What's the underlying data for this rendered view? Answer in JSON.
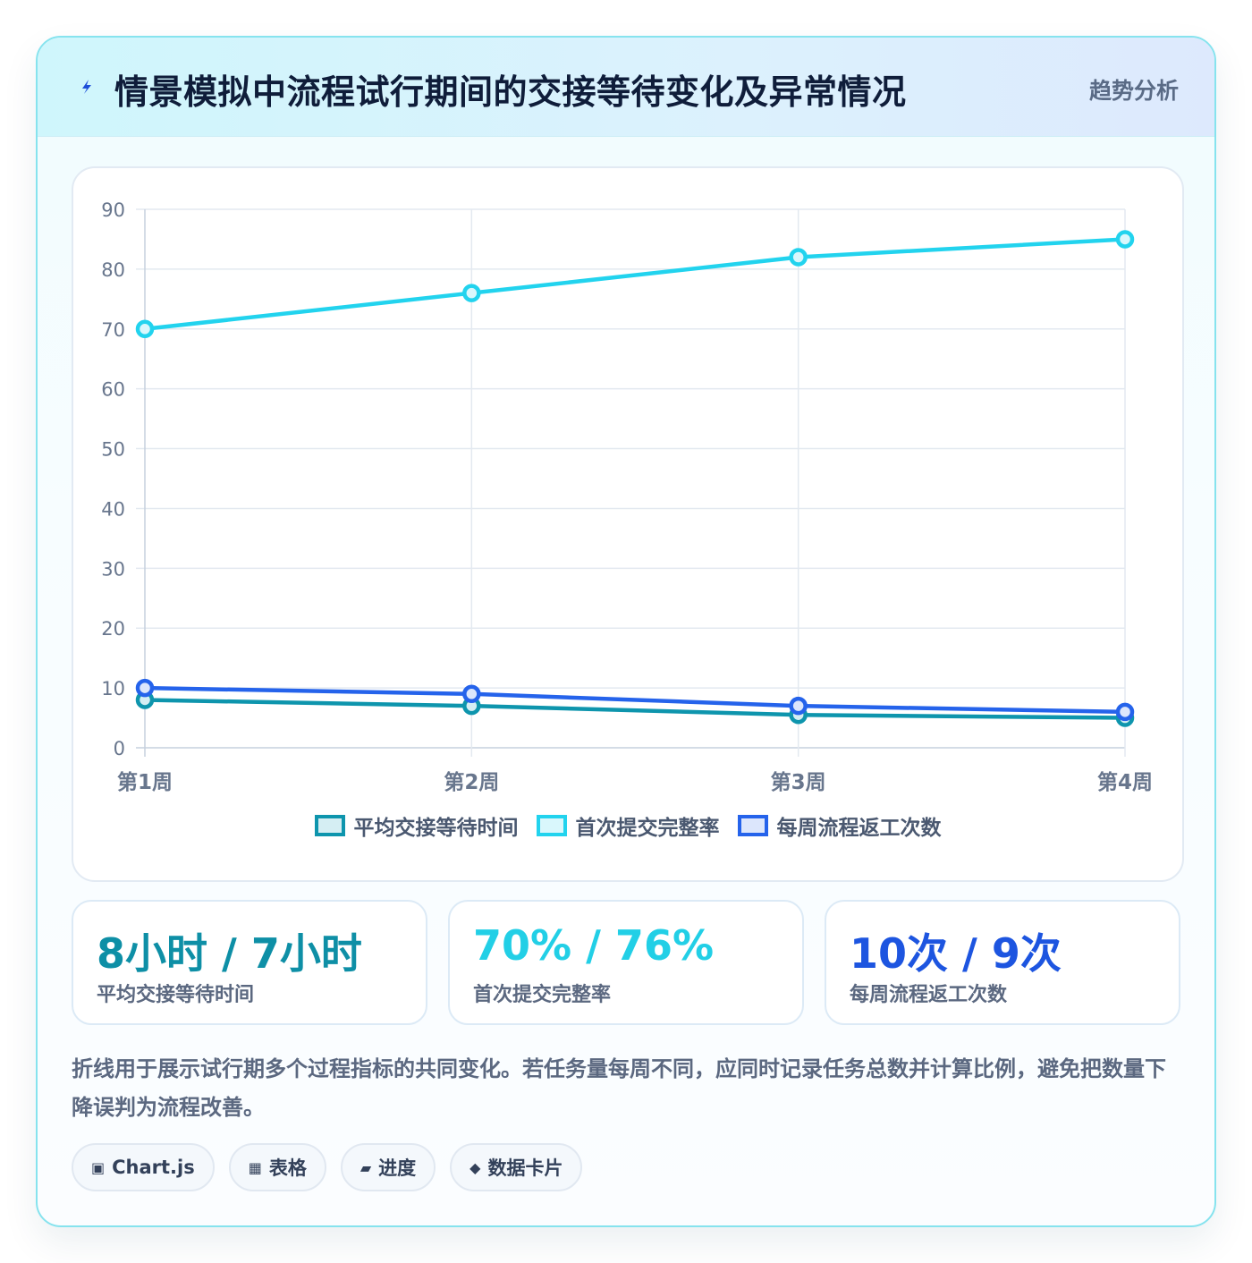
{
  "header": {
    "title": "情景模拟中流程试行期间的交接等待变化及异常情况",
    "badge": "趋势分析",
    "icon": "lightning-icon"
  },
  "chart_data": {
    "type": "line",
    "categories": [
      "第1周",
      "第2周",
      "第3周",
      "第4周"
    ],
    "ylim": [
      0,
      90
    ],
    "yticks": [
      0,
      10,
      20,
      30,
      40,
      50,
      60,
      70,
      80,
      90
    ],
    "grid": true,
    "legend_position": "bottom",
    "series": [
      {
        "name": "平均交接等待时间",
        "values": [
          8,
          7,
          5.5,
          5
        ],
        "color": "#0e95ad",
        "fill": "#d5eef3"
      },
      {
        "name": "首次提交完整率",
        "values": [
          70,
          76,
          82,
          85
        ],
        "color": "#22d3ee",
        "fill": "#d9f7fc"
      },
      {
        "name": "每周流程返工次数",
        "values": [
          10,
          9,
          7,
          6
        ],
        "color": "#2563eb",
        "fill": "#dce6fc"
      }
    ]
  },
  "stats": [
    {
      "value": "8小时 / 7小时",
      "label": "平均交接等待时间",
      "color": "#0e8fa6"
    },
    {
      "value": "70% / 76%",
      "label": "首次提交完整率",
      "color": "#22cfe6"
    },
    {
      "value": "10次 / 9次",
      "label": "每周流程返工次数",
      "color": "#1d55e0"
    }
  ],
  "note": "折线用于展示试行期多个过程指标的共同变化。若任务量每周不同，应同时记录任务总数并计算比例，避免把数量下降误判为流程改善。",
  "tags": [
    {
      "icon": "▣",
      "icon_name": "chart-js-icon",
      "label": "Chart.js"
    },
    {
      "icon": "▦",
      "icon_name": "table-icon",
      "label": "表格"
    },
    {
      "icon": "▰",
      "icon_name": "progress-icon",
      "label": "进度"
    },
    {
      "icon": "◆",
      "icon_name": "data-card-icon",
      "label": "数据卡片"
    }
  ]
}
